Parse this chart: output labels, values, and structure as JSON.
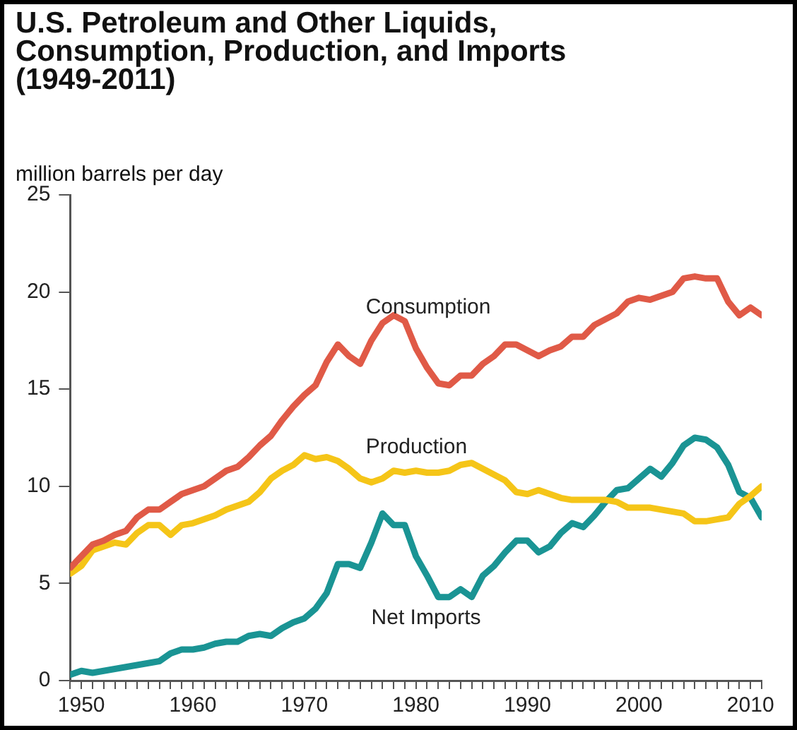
{
  "chart_data": {
    "type": "line",
    "title": "U.S. Petroleum and Other Liquids, Consumption, Production, and Imports (1949-2011)",
    "ylabel": "million barrels per day",
    "x": [
      1949,
      1950,
      1951,
      1952,
      1953,
      1954,
      1955,
      1956,
      1957,
      1958,
      1959,
      1960,
      1961,
      1962,
      1963,
      1964,
      1965,
      1966,
      1967,
      1968,
      1969,
      1970,
      1971,
      1972,
      1973,
      1974,
      1975,
      1976,
      1977,
      1978,
      1979,
      1980,
      1981,
      1982,
      1983,
      1984,
      1985,
      1986,
      1987,
      1988,
      1989,
      1990,
      1991,
      1992,
      1993,
      1994,
      1995,
      1996,
      1997,
      1998,
      1999,
      2000,
      2001,
      2002,
      2003,
      2004,
      2005,
      2006,
      2007,
      2008,
      2009,
      2010,
      2011
    ],
    "series": [
      {
        "name": "Consumption",
        "color": "#e05a47",
        "values": [
          5.8,
          6.4,
          7.0,
          7.2,
          7.5,
          7.7,
          8.4,
          8.8,
          8.8,
          9.2,
          9.6,
          9.8,
          10.0,
          10.4,
          10.8,
          11.0,
          11.5,
          12.1,
          12.6,
          13.4,
          14.1,
          14.7,
          15.2,
          16.4,
          17.3,
          16.7,
          16.3,
          17.5,
          18.4,
          18.8,
          18.5,
          17.1,
          16.1,
          15.3,
          15.2,
          15.7,
          15.7,
          16.3,
          16.7,
          17.3,
          17.3,
          17.0,
          16.7,
          17.0,
          17.2,
          17.7,
          17.7,
          18.3,
          18.6,
          18.9,
          19.5,
          19.7,
          19.6,
          19.8,
          20.0,
          20.7,
          20.8,
          20.7,
          20.7,
          19.5,
          18.8,
          19.2,
          18.8
        ]
      },
      {
        "name": "Production",
        "color": "#f5c518",
        "values": [
          5.5,
          5.9,
          6.7,
          6.9,
          7.1,
          7.0,
          7.6,
          8.0,
          8.0,
          7.5,
          8.0,
          8.1,
          8.3,
          8.5,
          8.8,
          9.0,
          9.2,
          9.7,
          10.4,
          10.8,
          11.1,
          11.6,
          11.4,
          11.5,
          11.3,
          10.9,
          10.4,
          10.2,
          10.4,
          10.8,
          10.7,
          10.8,
          10.7,
          10.7,
          10.8,
          11.1,
          11.2,
          10.9,
          10.6,
          10.3,
          9.7,
          9.6,
          9.8,
          9.6,
          9.4,
          9.3,
          9.3,
          9.3,
          9.3,
          9.2,
          8.9,
          8.9,
          8.9,
          8.8,
          8.7,
          8.6,
          8.2,
          8.2,
          8.3,
          8.4,
          9.1,
          9.5,
          10.0
        ]
      },
      {
        "name": "Net Imports",
        "color": "#1a9494",
        "values": [
          0.3,
          0.5,
          0.4,
          0.5,
          0.6,
          0.7,
          0.8,
          0.9,
          1.0,
          1.4,
          1.6,
          1.6,
          1.7,
          1.9,
          2.0,
          2.0,
          2.3,
          2.4,
          2.3,
          2.7,
          3.0,
          3.2,
          3.7,
          4.5,
          6.0,
          6.0,
          5.8,
          7.1,
          8.6,
          8.0,
          8.0,
          6.4,
          5.4,
          4.3,
          4.3,
          4.7,
          4.3,
          5.4,
          5.9,
          6.6,
          7.2,
          7.2,
          6.6,
          6.9,
          7.6,
          8.1,
          7.9,
          8.5,
          9.2,
          9.8,
          9.9,
          10.4,
          10.9,
          10.5,
          11.2,
          12.1,
          12.5,
          12.4,
          12.0,
          11.1,
          9.7,
          9.4,
          8.4
        ]
      }
    ],
    "xlim": [
      1949,
      2011
    ],
    "xticks": [
      {
        "value": 1949,
        "label": null
      },
      1950,
      {
        "value": 1951,
        "label": null
      },
      {
        "value": 1952,
        "label": null
      },
      {
        "value": 1953,
        "label": null
      },
      {
        "value": 1954,
        "label": null
      },
      {
        "value": 1955,
        "label": null
      },
      {
        "value": 1956,
        "label": null
      },
      {
        "value": 1957,
        "label": null
      },
      {
        "value": 1958,
        "label": null
      },
      {
        "value": 1959,
        "label": null
      },
      1960,
      {
        "value": 1961,
        "label": null
      },
      {
        "value": 1962,
        "label": null
      },
      {
        "value": 1963,
        "label": null
      },
      {
        "value": 1964,
        "label": null
      },
      {
        "value": 1965,
        "label": null
      },
      {
        "value": 1966,
        "label": null
      },
      {
        "value": 1967,
        "label": null
      },
      {
        "value": 1968,
        "label": null
      },
      {
        "value": 1969,
        "label": null
      },
      1970,
      {
        "value": 1971,
        "label": null
      },
      {
        "value": 1972,
        "label": null
      },
      {
        "value": 1973,
        "label": null
      },
      {
        "value": 1974,
        "label": null
      },
      {
        "value": 1975,
        "label": null
      },
      {
        "value": 1976,
        "label": null
      },
      {
        "value": 1977,
        "label": null
      },
      {
        "value": 1978,
        "label": null
      },
      {
        "value": 1979,
        "label": null
      },
      1980,
      {
        "value": 1981,
        "label": null
      },
      {
        "value": 1982,
        "label": null
      },
      {
        "value": 1983,
        "label": null
      },
      {
        "value": 1984,
        "label": null
      },
      {
        "value": 1985,
        "label": null
      },
      {
        "value": 1986,
        "label": null
      },
      {
        "value": 1987,
        "label": null
      },
      {
        "value": 1988,
        "label": null
      },
      {
        "value": 1989,
        "label": null
      },
      1990,
      {
        "value": 1991,
        "label": null
      },
      {
        "value": 1992,
        "label": null
      },
      {
        "value": 1993,
        "label": null
      },
      {
        "value": 1994,
        "label": null
      },
      {
        "value": 1995,
        "label": null
      },
      {
        "value": 1996,
        "label": null
      },
      {
        "value": 1997,
        "label": null
      },
      {
        "value": 1998,
        "label": null
      },
      {
        "value": 1999,
        "label": null
      },
      2000,
      {
        "value": 2001,
        "label": null
      },
      {
        "value": 2002,
        "label": null
      },
      {
        "value": 2003,
        "label": null
      },
      {
        "value": 2004,
        "label": null
      },
      {
        "value": 2005,
        "label": null
      },
      {
        "value": 2006,
        "label": null
      },
      {
        "value": 2007,
        "label": null
      },
      {
        "value": 2008,
        "label": null
      },
      {
        "value": 2009,
        "label": null
      },
      2010,
      {
        "value": 2011,
        "label": null
      }
    ],
    "ylim": [
      0,
      25
    ],
    "yticks": [
      0,
      5,
      10,
      15,
      20,
      25
    ],
    "grid": false,
    "legend": false,
    "marker": "none",
    "line_style": "solid"
  }
}
